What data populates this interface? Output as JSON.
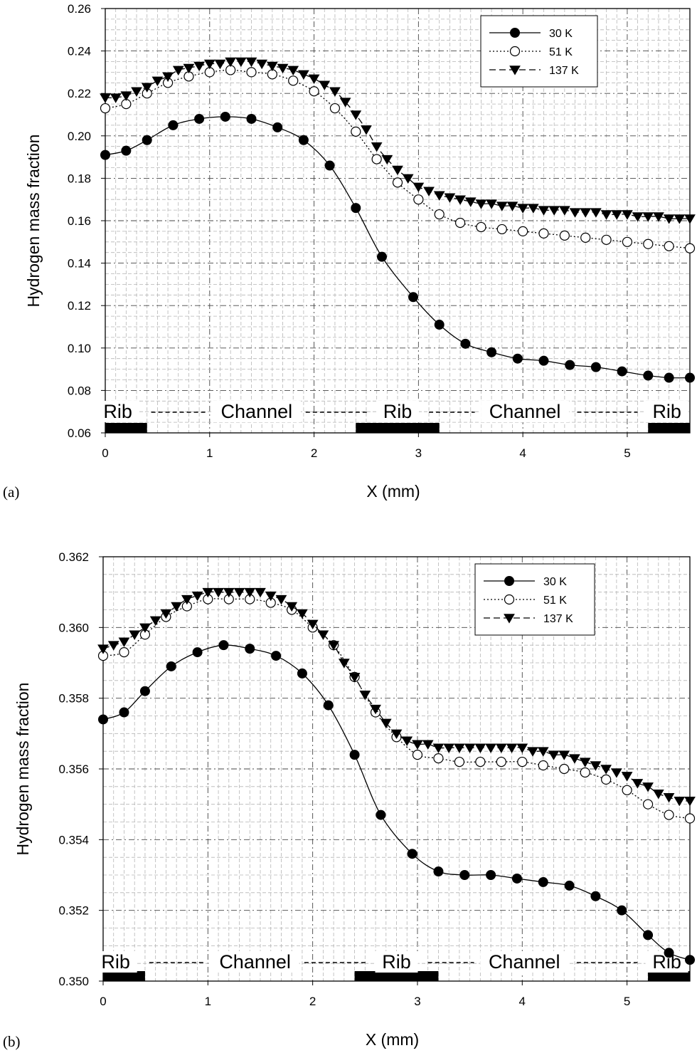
{
  "chart_data": [
    {
      "type": "line",
      "panel_label": "(a)",
      "xlabel": "X (mm)",
      "ylabel": "Hydrogen mass fraction",
      "xlim": [
        0,
        5.6
      ],
      "ylim": [
        0.06,
        0.26
      ],
      "xticks": [
        "0",
        "1",
        "2",
        "3",
        "4",
        "5"
      ],
      "yticks": [
        "0.06",
        "0.08",
        "0.10",
        "0.12",
        "0.14",
        "0.16",
        "0.18",
        "0.20",
        "0.22",
        "0.24",
        "0.26"
      ],
      "grid": true,
      "legend_position": "top-right",
      "region_labels": [
        "Rib",
        "Channel",
        "Rib",
        "Channel",
        "Rib"
      ],
      "ribs": [
        [
          0,
          0.4
        ],
        [
          2.4,
          3.2
        ],
        [
          5.2,
          5.6
        ]
      ],
      "series": [
        {
          "name": "30 K",
          "marker": "filled-circle",
          "line": "solid",
          "x": [
            0,
            0.2,
            0.4,
            0.65,
            0.9,
            1.15,
            1.4,
            1.65,
            1.9,
            2.15,
            2.4,
            2.65,
            2.95,
            3.2,
            3.45,
            3.7,
            3.95,
            4.2,
            4.45,
            4.7,
            4.95,
            5.2,
            5.4,
            5.6
          ],
          "values": [
            0.191,
            0.193,
            0.198,
            0.205,
            0.208,
            0.209,
            0.208,
            0.204,
            0.198,
            0.186,
            0.166,
            0.143,
            0.124,
            0.111,
            0.102,
            0.098,
            0.095,
            0.094,
            0.092,
            0.091,
            0.089,
            0.087,
            0.086,
            0.086
          ]
        },
        {
          "name": "51 K",
          "marker": "open-circle",
          "line": "dotted",
          "x": [
            0,
            0.2,
            0.4,
            0.6,
            0.8,
            1.0,
            1.2,
            1.4,
            1.6,
            1.8,
            2.0,
            2.2,
            2.4,
            2.6,
            2.8,
            3.0,
            3.2,
            3.4,
            3.6,
            3.8,
            4.0,
            4.2,
            4.4,
            4.6,
            4.8,
            5.0,
            5.2,
            5.4,
            5.6
          ],
          "values": [
            0.213,
            0.215,
            0.22,
            0.225,
            0.228,
            0.23,
            0.231,
            0.23,
            0.229,
            0.226,
            0.221,
            0.213,
            0.202,
            0.189,
            0.178,
            0.17,
            0.163,
            0.159,
            0.157,
            0.156,
            0.155,
            0.154,
            0.153,
            0.152,
            0.151,
            0.15,
            0.149,
            0.148,
            0.147
          ]
        },
        {
          "name": "137 K",
          "marker": "filled-triangle-down",
          "line": "dashed",
          "x": [
            0,
            0.1,
            0.2,
            0.3,
            0.4,
            0.5,
            0.6,
            0.7,
            0.8,
            0.9,
            1.0,
            1.1,
            1.2,
            1.3,
            1.4,
            1.5,
            1.6,
            1.7,
            1.8,
            1.9,
            2.0,
            2.1,
            2.2,
            2.3,
            2.4,
            2.5,
            2.6,
            2.7,
            2.8,
            2.9,
            3.0,
            3.1,
            3.2,
            3.3,
            3.4,
            3.5,
            3.6,
            3.7,
            3.8,
            3.9,
            4.0,
            4.1,
            4.2,
            4.3,
            4.4,
            4.5,
            4.6,
            4.7,
            4.8,
            4.9,
            5.0,
            5.1,
            5.2,
            5.3,
            5.4,
            5.5,
            5.6
          ],
          "values": [
            0.218,
            0.218,
            0.219,
            0.221,
            0.223,
            0.226,
            0.228,
            0.231,
            0.232,
            0.233,
            0.234,
            0.234,
            0.235,
            0.235,
            0.235,
            0.234,
            0.233,
            0.232,
            0.231,
            0.229,
            0.227,
            0.224,
            0.221,
            0.216,
            0.21,
            0.203,
            0.195,
            0.189,
            0.184,
            0.18,
            0.176,
            0.174,
            0.172,
            0.171,
            0.17,
            0.169,
            0.168,
            0.168,
            0.167,
            0.167,
            0.166,
            0.166,
            0.165,
            0.165,
            0.165,
            0.164,
            0.164,
            0.164,
            0.163,
            0.163,
            0.163,
            0.162,
            0.162,
            0.162,
            0.161,
            0.161,
            0.161
          ]
        }
      ]
    },
    {
      "type": "line",
      "panel_label": "(b)",
      "xlabel": "X (mm)",
      "ylabel": "Hydrogen mass fraction",
      "xlim": [
        0,
        5.6
      ],
      "ylim": [
        0.35,
        0.362
      ],
      "xticks": [
        "0",
        "1",
        "2",
        "3",
        "4",
        "5"
      ],
      "yticks": [
        "0.350",
        "0.352",
        "0.354",
        "0.356",
        "0.358",
        "0.360",
        "0.362"
      ],
      "grid": true,
      "legend_position": "top-right",
      "region_labels": [
        "Rib",
        "Channel",
        "Rib",
        "Channel",
        "Rib"
      ],
      "ribs": [
        [
          0,
          0.4
        ],
        [
          2.4,
          3.2
        ],
        [
          5.2,
          5.6
        ]
      ],
      "series": [
        {
          "name": "30 K",
          "marker": "filled-circle",
          "line": "solid",
          "x": [
            0,
            0.2,
            0.4,
            0.65,
            0.9,
            1.15,
            1.4,
            1.65,
            1.9,
            2.15,
            2.4,
            2.65,
            2.95,
            3.2,
            3.45,
            3.7,
            3.95,
            4.2,
            4.45,
            4.7,
            4.95,
            5.2,
            5.4,
            5.6
          ],
          "values": [
            0.3574,
            0.3576,
            0.3582,
            0.3589,
            0.3593,
            0.3595,
            0.3594,
            0.3592,
            0.3587,
            0.3578,
            0.3564,
            0.3547,
            0.3536,
            0.3531,
            0.353,
            0.353,
            0.3529,
            0.3528,
            0.3527,
            0.3524,
            0.352,
            0.3513,
            0.3508,
            0.3506
          ]
        },
        {
          "name": "51 K",
          "marker": "open-circle",
          "line": "dotted",
          "x": [
            0,
            0.2,
            0.4,
            0.6,
            0.8,
            1.0,
            1.2,
            1.4,
            1.6,
            1.8,
            2.0,
            2.2,
            2.4,
            2.6,
            2.8,
            3.0,
            3.2,
            3.4,
            3.6,
            3.8,
            4.0,
            4.2,
            4.4,
            4.6,
            4.8,
            5.0,
            5.2,
            5.4,
            5.6
          ],
          "values": [
            0.3592,
            0.3593,
            0.3598,
            0.3603,
            0.3606,
            0.3608,
            0.3608,
            0.3608,
            0.3607,
            0.3605,
            0.36,
            0.3595,
            0.3586,
            0.3576,
            0.3569,
            0.3564,
            0.3563,
            0.3562,
            0.3562,
            0.3562,
            0.3562,
            0.3561,
            0.356,
            0.3559,
            0.3557,
            0.3554,
            0.355,
            0.3547,
            0.3546
          ]
        },
        {
          "name": "137 K",
          "marker": "filled-triangle-down",
          "line": "dashed",
          "x": [
            0,
            0.1,
            0.2,
            0.3,
            0.4,
            0.5,
            0.6,
            0.7,
            0.8,
            0.9,
            1.0,
            1.1,
            1.2,
            1.3,
            1.4,
            1.5,
            1.6,
            1.7,
            1.8,
            1.9,
            2.0,
            2.1,
            2.2,
            2.3,
            2.4,
            2.5,
            2.6,
            2.7,
            2.8,
            2.9,
            3.0,
            3.1,
            3.2,
            3.3,
            3.4,
            3.5,
            3.6,
            3.7,
            3.8,
            3.9,
            4.0,
            4.1,
            4.2,
            4.3,
            4.4,
            4.5,
            4.6,
            4.7,
            4.8,
            4.9,
            5.0,
            5.1,
            5.2,
            5.3,
            5.4,
            5.5,
            5.6
          ],
          "values": [
            0.3594,
            0.3595,
            0.3596,
            0.3598,
            0.36,
            0.3602,
            0.3604,
            0.3606,
            0.3608,
            0.3609,
            0.361,
            0.361,
            0.361,
            0.361,
            0.361,
            0.361,
            0.3609,
            0.3608,
            0.3606,
            0.3604,
            0.3601,
            0.3598,
            0.3595,
            0.359,
            0.3586,
            0.3581,
            0.3577,
            0.3573,
            0.357,
            0.3568,
            0.3567,
            0.3567,
            0.3566,
            0.3566,
            0.3566,
            0.3566,
            0.3566,
            0.3566,
            0.3566,
            0.3566,
            0.3566,
            0.3565,
            0.3565,
            0.3564,
            0.3564,
            0.3563,
            0.3562,
            0.3561,
            0.356,
            0.3559,
            0.3558,
            0.3556,
            0.3555,
            0.3553,
            0.3552,
            0.3551,
            0.3551
          ]
        }
      ]
    }
  ]
}
